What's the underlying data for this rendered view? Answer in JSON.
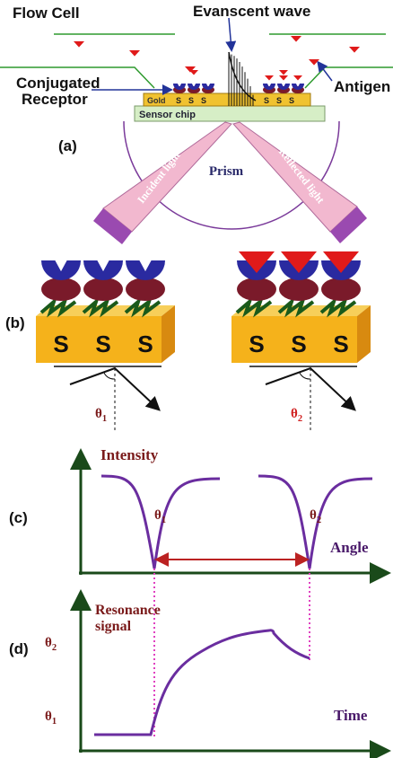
{
  "panel_a": {
    "label": "(a)",
    "flow_cell": "Flow Cell",
    "evanescent_wave": "Evanscent wave",
    "receptor": [
      "Conjugated",
      "Receptor"
    ],
    "antigen": "Antigen",
    "gold": "Gold",
    "sensor_chip": "Sensor chip",
    "chip_s": [
      "S",
      "S",
      "S",
      "S",
      "S",
      "S"
    ],
    "prism": "Prism",
    "incident": "Incident light",
    "reflected": "Reflected light"
  },
  "panel_b": {
    "label": "(b)",
    "s_left": [
      "S",
      "S",
      "S"
    ],
    "s_right": [
      "S",
      "S",
      "S"
    ],
    "theta_left": {
      "symbol": "θ",
      "sub": "1"
    },
    "theta_right": {
      "symbol": "θ",
      "sub": "2"
    }
  },
  "panel_c": {
    "label": "(c)",
    "y_axis": "Intensity",
    "x_axis": "Angle",
    "dip_left": {
      "symbol": "θ",
      "sub": "1"
    },
    "dip_right": {
      "symbol": "θ",
      "sub": "2"
    }
  },
  "panel_d": {
    "label": "(d)",
    "y_axis": [
      "Resonance",
      "signal"
    ],
    "x_axis": "Time",
    "level_high": {
      "symbol": "θ",
      "sub": "2"
    },
    "level_low": {
      "symbol": "θ",
      "sub": "1"
    }
  }
}
